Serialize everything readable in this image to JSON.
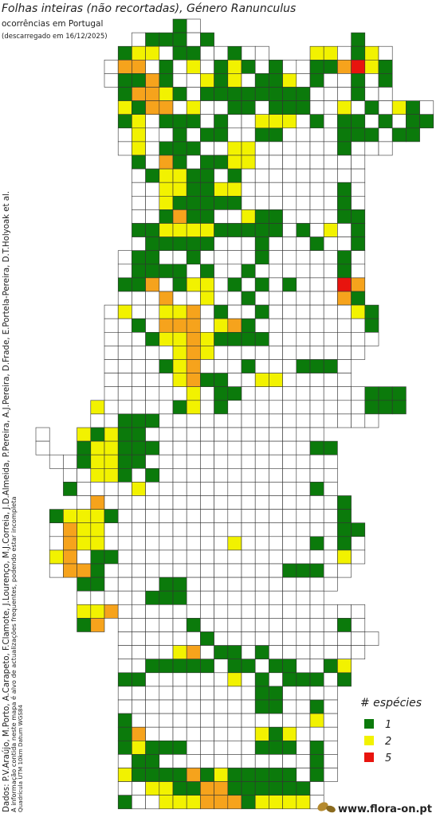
{
  "header": {
    "title": "Folhas inteiras (não recortadas), Género Ranunculus",
    "subtitle": "ocorrências em Portugal",
    "download": "(descarregado em 16/12/2025)"
  },
  "credits": [
    "Dados: P.V.Araújo, M.Porto, A.Carapeto, F.Clamote, J.Lourenço, M.J.Correia, J.D.Almeida, P.Pereira, A.J.Pereira, D.Frade, E.Portela-Pereira, D.T.Holyoak et al.",
    "A informação contida neste mapa é alvo de actualizações frequentes, podendo estar incompleta",
    "Quadrícula UTM 10km Datum WGS84"
  ],
  "legend": {
    "title": "# espécies",
    "items": [
      1,
      2,
      5
    ]
  },
  "footer": {
    "site": "www.flora-on.pt"
  },
  "map": {
    "colors": [
      "#ffffff",
      "#0b7a0b",
      "#f2f200",
      "#f6a31c",
      "#f07a1a",
      "#e8140e"
    ],
    "rows": [
      {
        "start": 10,
        "values": [
          1,
          0
        ]
      },
      {
        "start": 7,
        "values": [
          0,
          1,
          1,
          1,
          0,
          1,
          null,
          null,
          null,
          null,
          null,
          null,
          null,
          null,
          null,
          null,
          1
        ]
      },
      {
        "start": 6,
        "values": [
          1,
          2,
          2,
          0,
          1,
          1,
          0,
          0,
          1,
          0,
          0,
          null,
          null,
          null,
          2,
          2,
          0,
          1,
          2,
          0
        ]
      },
      {
        "start": 5,
        "values": [
          0,
          3,
          3,
          0,
          1,
          0,
          2,
          0,
          1,
          2,
          1,
          0,
          1,
          0,
          0,
          1,
          1,
          3,
          5,
          2,
          1
        ]
      },
      {
        "start": 5,
        "values": [
          0,
          1,
          1,
          3,
          1,
          0,
          0,
          2,
          1,
          2,
          0,
          1,
          1,
          2,
          0,
          1,
          0,
          0,
          1,
          0,
          1
        ]
      },
      {
        "start": 6,
        "values": [
          1,
          3,
          3,
          2,
          1,
          0,
          1,
          1,
          1,
          1,
          1,
          1,
          1,
          1,
          0,
          0,
          0,
          1,
          0,
          0
        ]
      },
      {
        "start": 6,
        "values": [
          2,
          1,
          3,
          3,
          0,
          2,
          0,
          0,
          1,
          1,
          0,
          1,
          1,
          1,
          0,
          0,
          2,
          0,
          1,
          0,
          2,
          1,
          0
        ]
      },
      {
        "start": 6,
        "values": [
          1,
          2,
          0,
          1,
          1,
          1,
          0,
          1,
          0,
          0,
          2,
          2,
          2,
          0,
          1,
          0,
          1,
          1,
          0,
          1,
          0,
          1,
          1
        ]
      },
      {
        "start": 6,
        "values": [
          0,
          2,
          0,
          0,
          1,
          0,
          1,
          1,
          0,
          0,
          1,
          1,
          0,
          0,
          0,
          0,
          1,
          1,
          1,
          0,
          1,
          1
        ]
      },
      {
        "start": 6,
        "values": [
          0,
          2,
          0,
          1,
          1,
          1,
          0,
          0,
          2,
          2,
          0,
          0,
          0,
          0,
          0,
          0,
          1,
          0,
          0,
          0
        ]
      },
      {
        "start": 7,
        "values": [
          1,
          0,
          3,
          1,
          0,
          1,
          1,
          2,
          2,
          0,
          0,
          0,
          0,
          0,
          0,
          0,
          0
        ]
      },
      {
        "start": 7,
        "values": [
          0,
          1,
          2,
          2,
          1,
          1,
          0,
          1,
          0,
          0,
          0,
          0,
          0,
          0,
          0,
          0,
          0
        ]
      },
      {
        "start": 7,
        "values": [
          0,
          0,
          2,
          2,
          1,
          1,
          2,
          2,
          0,
          0,
          0,
          0,
          0,
          0,
          0,
          1,
          0
        ]
      },
      {
        "start": 7,
        "values": [
          0,
          0,
          2,
          1,
          1,
          1,
          1,
          1,
          0,
          0,
          0,
          0,
          0,
          0,
          0,
          1,
          0
        ]
      },
      {
        "start": 7,
        "values": [
          0,
          0,
          1,
          3,
          1,
          1,
          0,
          0,
          2,
          1,
          1,
          0,
          0,
          0,
          0,
          1,
          1
        ]
      },
      {
        "start": 7,
        "values": [
          1,
          1,
          2,
          2,
          2,
          2,
          1,
          1,
          1,
          1,
          1,
          0,
          1,
          0,
          2,
          0,
          1
        ]
      },
      {
        "start": 7,
        "values": [
          0,
          1,
          1,
          1,
          1,
          1,
          0,
          0,
          0,
          1,
          0,
          0,
          0,
          1,
          0,
          0,
          1
        ]
      },
      {
        "start": 6,
        "values": [
          0,
          1,
          1,
          0,
          0,
          1,
          0,
          0,
          0,
          0,
          1,
          0,
          0,
          0,
          0,
          0,
          1,
          0
        ]
      },
      {
        "start": 6,
        "values": [
          0,
          1,
          1,
          1,
          1,
          0,
          1,
          0,
          0,
          1,
          0,
          0,
          0,
          0,
          0,
          0,
          1,
          0
        ]
      },
      {
        "start": 6,
        "values": [
          1,
          1,
          3,
          0,
          1,
          2,
          2,
          0,
          1,
          0,
          1,
          0,
          1,
          0,
          0,
          0,
          5,
          3
        ]
      },
      {
        "start": 6,
        "values": [
          0,
          0,
          0,
          3,
          0,
          0,
          2,
          0,
          0,
          1,
          0,
          0,
          0,
          0,
          0,
          0,
          3,
          1
        ]
      },
      {
        "start": 5,
        "values": [
          0,
          2,
          0,
          0,
          2,
          2,
          3,
          0,
          1,
          0,
          0,
          1,
          0,
          0,
          0,
          0,
          0,
          0,
          2,
          1
        ]
      },
      {
        "start": 5,
        "values": [
          0,
          0,
          1,
          0,
          3,
          3,
          3,
          0,
          2,
          3,
          1,
          0,
          0,
          0,
          0,
          0,
          0,
          0,
          0,
          1
        ]
      },
      {
        "start": 5,
        "values": [
          0,
          0,
          0,
          1,
          2,
          2,
          3,
          2,
          1,
          1,
          1,
          1,
          0,
          0,
          0,
          0,
          0,
          0,
          0,
          0
        ]
      },
      {
        "start": 5,
        "values": [
          0,
          0,
          0,
          0,
          0,
          2,
          3,
          2,
          0,
          0,
          0,
          0,
          0,
          0,
          0,
          0,
          0,
          0,
          0
        ]
      },
      {
        "start": 5,
        "values": [
          0,
          0,
          0,
          0,
          1,
          2,
          3,
          0,
          0,
          0,
          1,
          0,
          0,
          0,
          1,
          1,
          1,
          0
        ]
      },
      {
        "start": 5,
        "values": [
          0,
          0,
          0,
          0,
          0,
          2,
          3,
          1,
          1,
          0,
          0,
          2,
          2,
          0,
          0,
          0,
          0,
          0
        ]
      },
      {
        "start": 5,
        "values": [
          0,
          0,
          0,
          0,
          0,
          0,
          2,
          0,
          1,
          1,
          0,
          0,
          0,
          0,
          0,
          0,
          0,
          0,
          0,
          1,
          1,
          1
        ]
      },
      {
        "start": 4,
        "values": [
          2,
          0,
          0,
          0,
          0,
          0,
          1,
          2,
          0,
          1,
          0,
          0,
          0,
          0,
          0,
          0,
          0,
          0,
          0,
          0,
          1,
          1,
          1
        ]
      },
      {
        "start": 4,
        "values": [
          0,
          0,
          1,
          1,
          1,
          0,
          0,
          0,
          0,
          0,
          0,
          0,
          0,
          0,
          0,
          0,
          0,
          0,
          0,
          0,
          0
        ]
      },
      {
        "start": 0,
        "values": [
          0,
          null,
          null,
          2,
          1,
          2,
          1,
          1,
          0,
          0,
          0,
          0,
          0,
          0,
          0,
          0,
          0,
          0,
          0,
          0,
          0
        ]
      },
      {
        "start": 0,
        "values": [
          0,
          null,
          null,
          1,
          2,
          2,
          1,
          1,
          1,
          0,
          0,
          0,
          0,
          0,
          0,
          0,
          0,
          0,
          0,
          0,
          1,
          1
        ]
      },
      {
        "start": 1,
        "values": [
          0,
          0,
          1,
          2,
          2,
          1,
          1,
          0,
          0,
          0,
          0,
          0,
          0,
          0,
          0,
          0,
          0,
          0,
          0,
          0,
          0
        ]
      },
      {
        "start": 2,
        "values": [
          0,
          0,
          2,
          2,
          1,
          0,
          1,
          0,
          0,
          0,
          0,
          0,
          0,
          0,
          0,
          0,
          0,
          0,
          0,
          0
        ]
      },
      {
        "start": 2,
        "values": [
          1,
          0,
          0,
          0,
          0,
          2,
          0,
          0,
          0,
          0,
          0,
          0,
          0,
          0,
          0,
          0,
          0,
          0,
          1,
          0
        ]
      },
      {
        "start": 3,
        "values": [
          0,
          3,
          0,
          0,
          0,
          0,
          0,
          0,
          0,
          0,
          0,
          0,
          0,
          0,
          0,
          0,
          0,
          0,
          0,
          1
        ]
      },
      {
        "start": 1,
        "values": [
          1,
          2,
          2,
          2,
          1,
          0,
          0,
          0,
          0,
          0,
          0,
          0,
          0,
          0,
          0,
          0,
          0,
          0,
          0,
          0,
          0,
          1
        ]
      },
      {
        "start": 1,
        "values": [
          0,
          3,
          2,
          2,
          0,
          0,
          0,
          0,
          0,
          0,
          0,
          0,
          0,
          0,
          0,
          0,
          0,
          0,
          0,
          0,
          0,
          1,
          1
        ]
      },
      {
        "start": 1,
        "values": [
          0,
          3,
          2,
          2,
          0,
          0,
          0,
          0,
          0,
          0,
          0,
          0,
          0,
          2,
          0,
          0,
          0,
          0,
          0,
          1,
          0,
          1,
          0
        ]
      },
      {
        "start": 1,
        "values": [
          2,
          3,
          0,
          1,
          1,
          0,
          0,
          0,
          0,
          0,
          0,
          0,
          0,
          0,
          0,
          0,
          0,
          0,
          0,
          0,
          0,
          2,
          0
        ]
      },
      {
        "start": 1,
        "values": [
          0,
          3,
          3,
          1,
          null,
          0,
          0,
          0,
          0,
          0,
          0,
          0,
          0,
          0,
          0,
          0,
          0,
          1,
          1,
          1,
          0,
          0
        ]
      },
      {
        "start": 3,
        "values": [
          1,
          1,
          0,
          0,
          0,
          0,
          1,
          1,
          0,
          0,
          0,
          0,
          0,
          0,
          0,
          0,
          0,
          0,
          0
        ]
      },
      {
        "start": 3,
        "values": [
          0,
          0,
          0,
          0,
          0,
          1,
          1,
          1,
          0,
          0,
          0,
          0,
          0,
          0,
          0,
          0,
          0,
          0
        ]
      },
      {
        "start": 3,
        "values": [
          2,
          2,
          3,
          0,
          0,
          0,
          0,
          0,
          0,
          0,
          0,
          0,
          0,
          0,
          0,
          0,
          0,
          0,
          0,
          0,
          0
        ]
      },
      {
        "start": 3,
        "values": [
          1,
          3,
          null,
          0,
          0,
          0,
          0,
          0,
          1,
          0,
          0,
          0,
          0,
          0,
          0,
          0,
          0,
          0,
          0,
          1,
          0
        ]
      },
      {
        "start": 6,
        "values": [
          0,
          0,
          0,
          0,
          0,
          0,
          1,
          0,
          0,
          0,
          0,
          0,
          0,
          0,
          0,
          0,
          0,
          0,
          0
        ]
      },
      {
        "start": 6,
        "values": [
          0,
          0,
          0,
          0,
          2,
          3,
          0,
          1,
          1,
          0,
          1,
          0,
          0,
          0,
          0,
          0,
          0,
          0
        ]
      },
      {
        "start": 6,
        "values": [
          0,
          0,
          1,
          1,
          1,
          1,
          1,
          0,
          1,
          1,
          0,
          1,
          1,
          0,
          0,
          1,
          2
        ]
      },
      {
        "start": 6,
        "values": [
          1,
          1,
          0,
          0,
          0,
          0,
          0,
          0,
          2,
          0,
          1,
          0,
          1,
          1,
          1,
          0,
          1
        ]
      },
      {
        "start": 6,
        "values": [
          0,
          0,
          0,
          0,
          0,
          0,
          0,
          0,
          0,
          0,
          1,
          1,
          0,
          0,
          0,
          0
        ]
      },
      {
        "start": 6,
        "values": [
          0,
          0,
          0,
          0,
          0,
          0,
          0,
          0,
          0,
          0,
          1,
          1,
          0,
          0,
          1,
          0
        ]
      },
      {
        "start": 6,
        "values": [
          1,
          0,
          0,
          0,
          0,
          0,
          0,
          0,
          0,
          0,
          0,
          0,
          0,
          0,
          2,
          0
        ]
      },
      {
        "start": 6,
        "values": [
          1,
          3,
          0,
          0,
          0,
          0,
          0,
          0,
          0,
          0,
          2,
          1,
          2,
          0,
          0,
          0
        ]
      },
      {
        "start": 6,
        "values": [
          1,
          2,
          1,
          1,
          1,
          0,
          0,
          0,
          0,
          0,
          1,
          1,
          1,
          0,
          1,
          0
        ]
      },
      {
        "start": 6,
        "values": [
          0,
          1,
          1,
          0,
          0,
          0,
          0,
          0,
          0,
          0,
          0,
          0,
          0,
          0,
          1,
          0
        ]
      },
      {
        "start": 6,
        "values": [
          2,
          1,
          1,
          1,
          1,
          3,
          1,
          2,
          1,
          1,
          1,
          1,
          1,
          0,
          1,
          0
        ]
      },
      {
        "start": 6,
        "values": [
          0,
          0,
          2,
          2,
          1,
          1,
          3,
          3,
          1,
          1,
          1,
          1,
          1,
          1,
          0
        ]
      },
      {
        "start": 6,
        "values": [
          1,
          0,
          0,
          2,
          2,
          2,
          3,
          3,
          3,
          1,
          2,
          2,
          2,
          2,
          0
        ]
      }
    ]
  }
}
